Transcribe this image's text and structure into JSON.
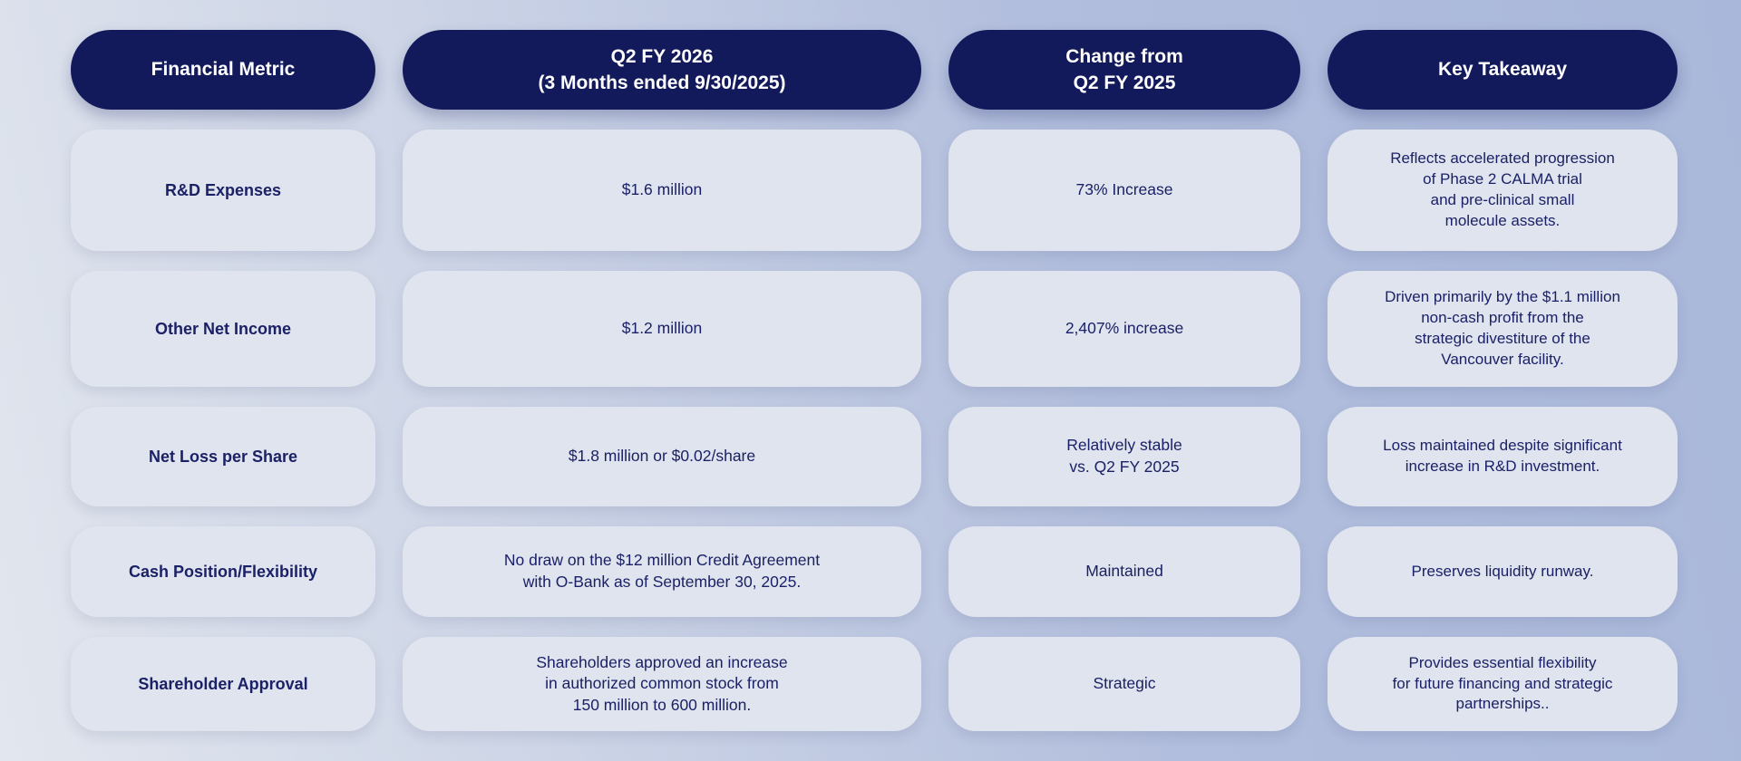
{
  "colors": {
    "header_background": "#131a5b",
    "header_text": "#ffffff",
    "cell_background": "#dfe4ee",
    "cell_text": "#1b2166",
    "page_gradient_left": "#e2e6ee",
    "page_gradient_right": "#a9b7da"
  },
  "table": {
    "headers": [
      {
        "label": "Financial Metric"
      },
      {
        "label": "Q2 FY 2026\n(3 Months ended 9/30/2025)"
      },
      {
        "label": "Change from\nQ2 FY 2025"
      },
      {
        "label": "Key Takeaway"
      }
    ],
    "rows": [
      {
        "metric": "R&D Expenses",
        "value": "$1.6 million",
        "change": "73% Increase",
        "takeaway": "Reflects accelerated progression\nof Phase 2 CALMA trial\nand pre-clinical small\nmolecule assets."
      },
      {
        "metric": "Other Net Income",
        "value": "$1.2 million",
        "change": "2,407% increase",
        "takeaway": "Driven primarily by the $1.1 million\nnon-cash profit from the\nstrategic divestiture of the\nVancouver facility."
      },
      {
        "metric": "Net Loss per Share",
        "value": "$1.8 million or $0.02/share",
        "change": "Relatively stable\nvs. Q2 FY 2025",
        "takeaway": "Loss maintained despite significant\nincrease in R&D investment."
      },
      {
        "metric": "Cash Position/Flexibility",
        "value": "No draw on the $12 million Credit Agreement\nwith O-Bank as of September 30, 2025.",
        "change": "Maintained",
        "takeaway": "Preserves liquidity runway."
      },
      {
        "metric": "Shareholder Approval",
        "value": "Shareholders approved an increase\nin authorized common stock from\n150 million to 600 million.",
        "change": "Strategic",
        "takeaway": "Provides essential flexibility\nfor future financing and strategic\npartnerships.."
      }
    ]
  },
  "chart_data": {
    "type": "table",
    "title": "",
    "columns": [
      "Financial Metric",
      "Q2 FY 2026 (3 Months ended 9/30/2025)",
      "Change from Q2 FY 2025",
      "Key Takeaway"
    ],
    "rows": [
      [
        "R&D Expenses",
        "$1.6 million",
        "73% Increase",
        "Reflects accelerated progression of Phase 2 CALMA trial and pre-clinical small molecule assets."
      ],
      [
        "Other Net Income",
        "$1.2 million",
        "2,407% increase",
        "Driven primarily by the $1.1 million non-cash profit from the strategic divestiture of the Vancouver facility."
      ],
      [
        "Net Loss per Share",
        "$1.8 million or $0.02/share",
        "Relatively stable vs. Q2 FY 2025",
        "Loss maintained despite significant increase in R&D investment."
      ],
      [
        "Cash Position/Flexibility",
        "No draw on the $12 million Credit Agreement with O-Bank as of September 30, 2025.",
        "Maintained",
        "Preserves liquidity runway."
      ],
      [
        "Shareholder Approval",
        "Shareholders approved an increase in authorized common stock from 150 million to 600 million.",
        "Strategic",
        "Provides essential flexibility for future financing and strategic partnerships.."
      ]
    ]
  }
}
